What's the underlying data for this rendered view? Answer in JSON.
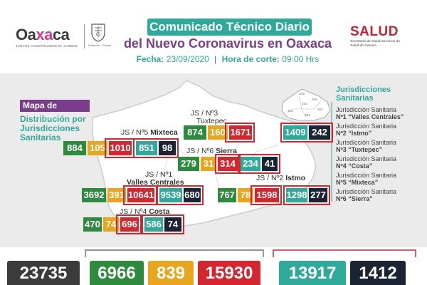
{
  "header": {
    "logo_left": "Oa",
    "logo_accent": "xa",
    "logo_right": "ca",
    "logo_tagline": "JUNTOS CONSTRUIMOS EL CAMBIO",
    "seal_text": "Gobierno · Estado",
    "title": "Comunicado Técnico Diario",
    "subtitle": "del Nuevo Coronavirus en Oaxaca",
    "date_label": "Fecha:",
    "date_value": "23/09/2020",
    "time_label": "Hora de corte:",
    "time_value": "09:00 Hrs",
    "salud": "SALUD",
    "salud_sub": "Secretaría de Salud Servicios de Salud de Oaxaca"
  },
  "map": {
    "title": "Mapa de Oaxaca",
    "subtitle": "Distribución por Jurisdicciones Sanitarias",
    "mini_labels": [
      "JS1",
      "JS2",
      "JS3",
      "JS4",
      "JS5",
      "JS6"
    ],
    "jurisdictions": [
      {
        "id": "js3",
        "label_prefix": "JS / Nº3",
        "label_name": "Tuxtepec",
        "values": [
          "874",
          "160",
          "1671",
          "1409",
          "242"
        ]
      },
      {
        "id": "js5",
        "label_prefix": "JS / Nº5",
        "label_name": "Mixteca",
        "values": [
          "884",
          "105",
          "1010",
          "851",
          "98"
        ]
      },
      {
        "id": "js6",
        "label_prefix": "JS / Nº6",
        "label_name": "Sierra",
        "values": [
          "279",
          "31",
          "314",
          "234",
          "41"
        ]
      },
      {
        "id": "js1",
        "label_prefix": "JS / Nº1",
        "label_name": "Valles Centrales",
        "values": [
          "3692",
          "391",
          "10641",
          "9539",
          "680"
        ]
      },
      {
        "id": "js2",
        "label_prefix": "JS / Nº2",
        "label_name": "Istmo",
        "values": [
          "767",
          "78",
          "1598",
          "1298",
          "277"
        ]
      },
      {
        "id": "js4",
        "label_prefix": "JS / Nº4",
        "label_name": "Costa",
        "values": [
          "470",
          "74",
          "696",
          "586",
          "74"
        ]
      }
    ]
  },
  "legend": {
    "title": "Jurisdicciones Sanitarias",
    "items": [
      {
        "prefix": "Jurisdicción Sanitaria",
        "name": "Nº1 “Valles Centrales”"
      },
      {
        "prefix": "Jurisdicción Sanitaria",
        "name": "Nº2 “Istmo”"
      },
      {
        "prefix": "Jurisdicción Sanitaria",
        "name": "Nº3 “Tuxtepec”"
      },
      {
        "prefix": "Jurisdicción Sanitaria",
        "name": "Nº4 “Costa”"
      },
      {
        "prefix": "Jurisdicción Sanitaria",
        "name": "Nº5 “Mixteca”"
      },
      {
        "prefix": "Jurisdicción Sanitaria",
        "name": "Nº6 “Sierra”"
      }
    ]
  },
  "totals": [
    "23735",
    "6966",
    "839",
    "15930",
    "13917",
    "1412"
  ],
  "colors": {
    "green": "#2e8b3e",
    "yellow": "#e8a51e",
    "red": "#d3262f",
    "teal": "#2fa99a",
    "navy": "#1c2434",
    "purple": "#7c3c8c"
  }
}
